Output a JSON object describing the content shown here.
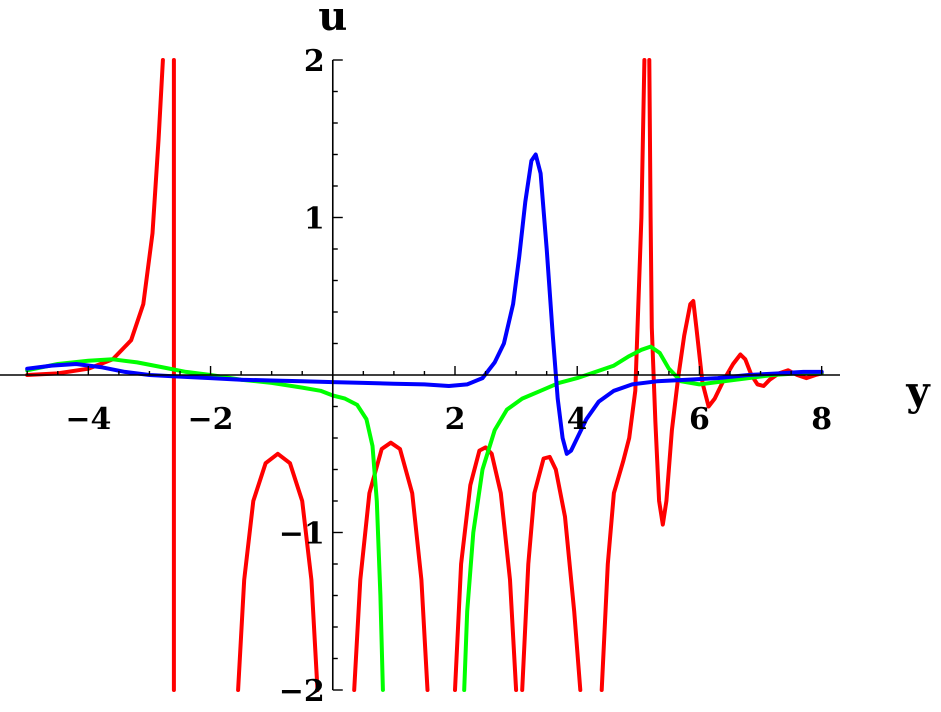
{
  "chart_data": {
    "type": "line",
    "title": "",
    "xlabel": "y",
    "ylabel": "u",
    "xlim": [
      -5.2,
      8.3
    ],
    "ylim": [
      -2,
      2
    ],
    "x_ticks": [
      -4,
      -2,
      2,
      4,
      6,
      8
    ],
    "x_tick_labels": [
      "−4",
      "−2",
      "2",
      "4",
      "6",
      "8"
    ],
    "y_ticks": [
      -2,
      -1,
      1,
      2
    ],
    "y_tick_labels": [
      "−2",
      "−1",
      "1",
      "2"
    ],
    "grid": false,
    "legend": "none",
    "colors": {
      "red": "#ff0000",
      "green": "#00ff00",
      "blue": "#0000ff",
      "axis": "#000000"
    },
    "series": [
      {
        "color": "#ff0000",
        "segments": [
          [
            [
              -5.0,
              0.0
            ],
            [
              -4.5,
              0.01
            ],
            [
              -4.0,
              0.04
            ],
            [
              -3.6,
              0.1
            ],
            [
              -3.3,
              0.22
            ],
            [
              -3.1,
              0.45
            ],
            [
              -2.95,
              0.9
            ],
            [
              -2.85,
              1.5
            ],
            [
              -2.78,
              2.0
            ]
          ],
          [
            [
              -2.6,
              2.0
            ],
            [
              -2.6,
              -2.0
            ]
          ],
          [
            [
              -1.55,
              -2.0
            ],
            [
              -1.45,
              -1.3
            ],
            [
              -1.3,
              -0.8
            ],
            [
              -1.1,
              -0.56
            ],
            [
              -0.9,
              -0.5
            ],
            [
              -0.7,
              -0.56
            ],
            [
              -0.5,
              -0.8
            ],
            [
              -0.35,
              -1.3
            ],
            [
              -0.25,
              -2.0
            ]
          ],
          [
            [
              0.35,
              -2.0
            ],
            [
              0.45,
              -1.3
            ],
            [
              0.6,
              -0.75
            ],
            [
              0.8,
              -0.47
            ],
            [
              0.95,
              -0.43
            ],
            [
              1.1,
              -0.47
            ],
            [
              1.3,
              -0.75
            ],
            [
              1.45,
              -1.3
            ],
            [
              1.55,
              -2.0
            ]
          ],
          [
            [
              2.0,
              -2.0
            ],
            [
              2.1,
              -1.2
            ],
            [
              2.25,
              -0.7
            ],
            [
              2.4,
              -0.48
            ],
            [
              2.5,
              -0.46
            ],
            [
              2.6,
              -0.5
            ],
            [
              2.75,
              -0.75
            ],
            [
              2.9,
              -1.3
            ],
            [
              3.0,
              -2.0
            ]
          ],
          [
            [
              3.1,
              -2.0
            ],
            [
              3.2,
              -1.2
            ],
            [
              3.3,
              -0.75
            ],
            [
              3.45,
              -0.53
            ],
            [
              3.55,
              -0.52
            ],
            [
              3.65,
              -0.6
            ],
            [
              3.8,
              -0.9
            ],
            [
              3.95,
              -1.5
            ],
            [
              4.05,
              -2.0
            ]
          ],
          [
            [
              4.4,
              -2.0
            ],
            [
              4.5,
              -1.2
            ],
            [
              4.6,
              -0.75
            ],
            [
              4.75,
              -0.55
            ],
            [
              4.85,
              -0.4
            ],
            [
              4.95,
              -0.1
            ],
            [
              5.05,
              1.0
            ],
            [
              5.1,
              2.0
            ]
          ],
          [
            [
              5.18,
              2.0
            ],
            [
              5.2,
              1.0
            ],
            [
              5.22,
              0.3
            ],
            [
              5.28,
              -0.3
            ],
            [
              5.34,
              -0.8
            ],
            [
              5.4,
              -0.95
            ],
            [
              5.46,
              -0.8
            ],
            [
              5.55,
              -0.35
            ],
            [
              5.65,
              -0.02
            ],
            [
              5.75,
              0.25
            ],
            [
              5.85,
              0.45
            ],
            [
              5.9,
              0.47
            ],
            [
              5.95,
              0.3
            ],
            [
              6.05,
              -0.05
            ],
            [
              6.15,
              -0.2
            ],
            [
              6.25,
              -0.15
            ],
            [
              6.4,
              -0.03
            ],
            [
              6.55,
              0.07
            ],
            [
              6.67,
              0.13
            ],
            [
              6.75,
              0.1
            ],
            [
              6.85,
              0.0
            ],
            [
              6.95,
              -0.06
            ],
            [
              7.05,
              -0.07
            ],
            [
              7.15,
              -0.03
            ],
            [
              7.3,
              0.01
            ],
            [
              7.45,
              0.03
            ],
            [
              7.6,
              0.0
            ],
            [
              7.75,
              -0.02
            ],
            [
              7.9,
              0.0
            ],
            [
              8.0,
              0.01
            ]
          ]
        ]
      },
      {
        "color": "#00ff00",
        "segments": [
          [
            [
              -5.0,
              0.03
            ],
            [
              -4.5,
              0.07
            ],
            [
              -4.0,
              0.09
            ],
            [
              -3.6,
              0.1
            ],
            [
              -3.2,
              0.08
            ],
            [
              -2.8,
              0.05
            ],
            [
              -2.4,
              0.02
            ],
            [
              -2.0,
              0.0
            ],
            [
              -1.5,
              -0.03
            ],
            [
              -1.0,
              -0.05
            ],
            [
              -0.5,
              -0.08
            ],
            [
              -0.2,
              -0.1
            ],
            [
              0.0,
              -0.13
            ],
            [
              0.2,
              -0.15
            ],
            [
              0.4,
              -0.19
            ],
            [
              0.55,
              -0.28
            ],
            [
              0.65,
              -0.45
            ],
            [
              0.72,
              -0.8
            ],
            [
              0.78,
              -1.4
            ],
            [
              0.82,
              -2.0
            ]
          ],
          [
            [
              2.15,
              -2.0
            ],
            [
              2.2,
              -1.5
            ],
            [
              2.3,
              -1.0
            ],
            [
              2.45,
              -0.6
            ],
            [
              2.65,
              -0.35
            ],
            [
              2.85,
              -0.22
            ],
            [
              3.1,
              -0.15
            ],
            [
              3.4,
              -0.1
            ],
            [
              3.7,
              -0.05
            ],
            [
              4.0,
              -0.02
            ],
            [
              4.3,
              0.02
            ],
            [
              4.6,
              0.06
            ],
            [
              4.85,
              0.12
            ],
            [
              5.05,
              0.16
            ],
            [
              5.2,
              0.18
            ],
            [
              5.35,
              0.14
            ],
            [
              5.5,
              0.04
            ],
            [
              5.7,
              -0.04
            ],
            [
              6.0,
              -0.06
            ],
            [
              6.4,
              -0.04
            ],
            [
              6.8,
              -0.02
            ],
            [
              7.2,
              0.0
            ],
            [
              7.6,
              0.01
            ],
            [
              8.0,
              0.01
            ]
          ]
        ]
      },
      {
        "color": "#0000ff",
        "segments": [
          [
            [
              -5.0,
              0.04
            ],
            [
              -4.6,
              0.06
            ],
            [
              -4.2,
              0.07
            ],
            [
              -3.8,
              0.05
            ],
            [
              -3.4,
              0.02
            ],
            [
              -3.0,
              0.0
            ],
            [
              -2.5,
              -0.01
            ],
            [
              -2.0,
              -0.02
            ],
            [
              -1.5,
              -0.03
            ],
            [
              -1.0,
              -0.035
            ],
            [
              -0.5,
              -0.04
            ],
            [
              0.0,
              -0.045
            ],
            [
              0.5,
              -0.05
            ],
            [
              1.0,
              -0.055
            ],
            [
              1.5,
              -0.06
            ],
            [
              1.9,
              -0.07
            ],
            [
              2.2,
              -0.06
            ],
            [
              2.45,
              -0.02
            ],
            [
              2.65,
              0.08
            ],
            [
              2.8,
              0.2
            ],
            [
              2.95,
              0.45
            ],
            [
              3.05,
              0.75
            ],
            [
              3.15,
              1.1
            ],
            [
              3.25,
              1.36
            ],
            [
              3.32,
              1.4
            ],
            [
              3.4,
              1.28
            ],
            [
              3.5,
              0.8
            ],
            [
              3.6,
              0.25
            ],
            [
              3.68,
              -0.15
            ],
            [
              3.76,
              -0.4
            ],
            [
              3.83,
              -0.5
            ],
            [
              3.9,
              -0.48
            ],
            [
              4.0,
              -0.4
            ],
            [
              4.15,
              -0.28
            ],
            [
              4.35,
              -0.17
            ],
            [
              4.6,
              -0.1
            ],
            [
              4.9,
              -0.06
            ],
            [
              5.3,
              -0.04
            ],
            [
              5.8,
              -0.03
            ],
            [
              6.3,
              -0.02
            ],
            [
              6.8,
              0.0
            ],
            [
              7.3,
              0.01
            ],
            [
              7.7,
              0.02
            ],
            [
              8.0,
              0.02
            ]
          ]
        ]
      }
    ]
  }
}
